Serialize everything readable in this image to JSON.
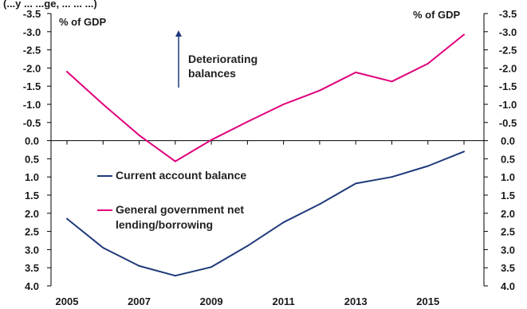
{
  "header_fragment": "(...y  ...  ...ge,  ...  ...  ...)",
  "chart_data": {
    "type": "line",
    "y_unit_left": "% of GDP",
    "y_unit_right": "% of GDP",
    "annotation": [
      "Deteriorating",
      "balances"
    ],
    "x_tick_labels": [
      "2005",
      "2007",
      "2009",
      "2011",
      "2013",
      "2015"
    ],
    "y_tick_labels": [
      "-3.5",
      "-3.0",
      "-2.5",
      "-2.0",
      "-1.5",
      "-1.0",
      "-0.5",
      "0.0",
      "0.5",
      "1.0",
      "1.5",
      "2.0",
      "2.5",
      "3.0",
      "3.5",
      "4.0"
    ],
    "ylim": [
      -3.5,
      4.0
    ],
    "y_axis_inverted": true,
    "grid": false,
    "legend_position": "center-left",
    "x": [
      2005,
      2006,
      2007,
      2008,
      2009,
      2010,
      2011,
      2012,
      2013,
      2014,
      2015,
      2016
    ],
    "series": [
      {
        "name": "Current account balance",
        "color": "#1f3a7a",
        "values": [
          2.15,
          2.95,
          3.45,
          3.72,
          3.48,
          2.9,
          2.25,
          1.75,
          1.18,
          1.0,
          0.7,
          0.3
        ]
      },
      {
        "name": "General government net lending/borrowing",
        "name_lines": [
          "General government net",
          "lending/borrowing"
        ],
        "color": "#e0007a",
        "values": [
          -1.9,
          -1.0,
          -0.15,
          0.57,
          -0.02,
          -0.52,
          -1.0,
          -1.38,
          -1.88,
          -1.63,
          -2.12,
          -2.92
        ]
      }
    ]
  }
}
